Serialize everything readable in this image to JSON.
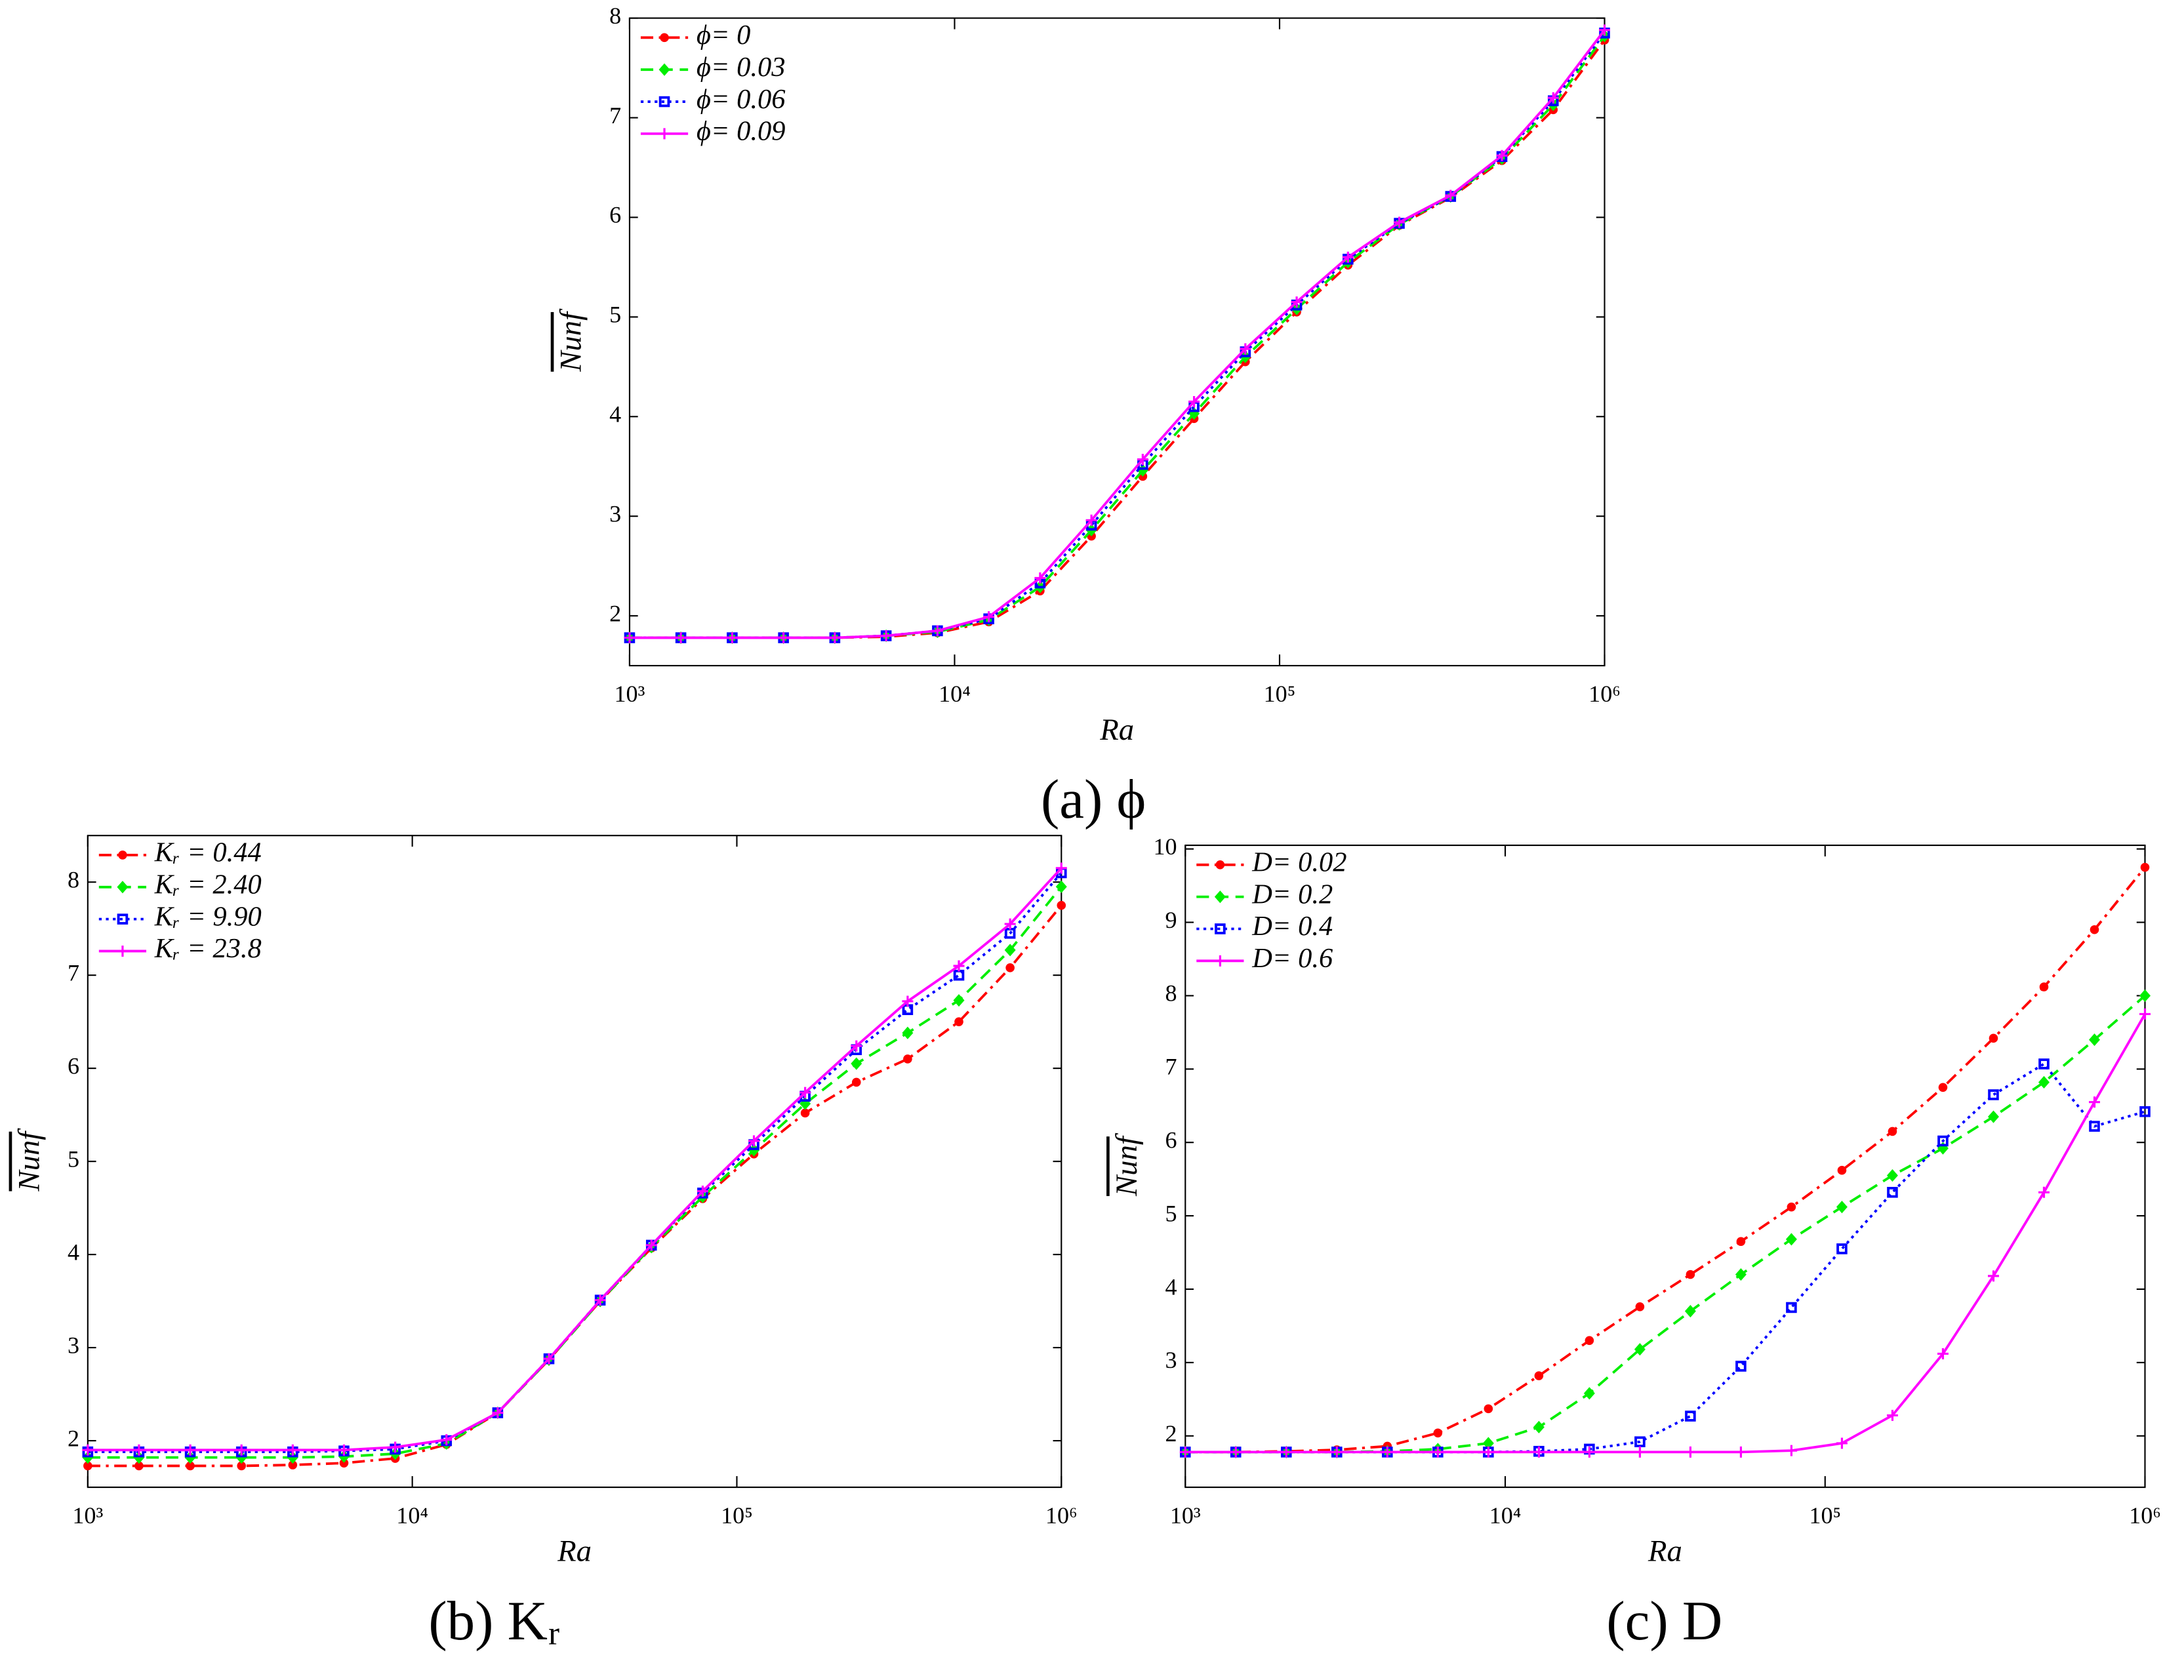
{
  "chart_data": [
    {
      "type": "line",
      "caption": "(a) ϕ",
      "xlabel": "Ra",
      "ylabel": "Nunf",
      "xscale": "log",
      "x": [
        1000,
        1438,
        2069,
        2976,
        4281,
        6158,
        8859,
        12743,
        18330,
        26367,
        37927,
        54556,
        78476,
        112884,
        162378,
        233572,
        335982,
        483293,
        695193,
        1000000
      ],
      "xlim": [
        1000,
        1000000
      ],
      "xticks": [
        {
          "value": 1000,
          "label": "10³"
        },
        {
          "value": 10000,
          "label": "10⁴"
        },
        {
          "value": 100000,
          "label": "10⁵"
        },
        {
          "value": 1000000,
          "label": "10⁶"
        }
      ],
      "ylim": [
        1.5,
        8
      ],
      "yticks": [
        2,
        3,
        4,
        5,
        6,
        7,
        8
      ],
      "legend": "upper left",
      "series": [
        {
          "name": "ϕ= 0",
          "color": "#ff0000",
          "marker": "circle",
          "linestyle": "dashdot",
          "values": [
            1.78,
            1.78,
            1.78,
            1.78,
            1.78,
            1.79,
            1.83,
            1.94,
            2.25,
            2.8,
            3.4,
            3.98,
            4.55,
            5.05,
            5.52,
            5.92,
            6.2,
            6.57,
            7.08,
            7.78
          ]
        },
        {
          "name": "ϕ= 0.03",
          "color": "#00ee00",
          "marker": "diamond",
          "linestyle": "dashed",
          "values": [
            1.78,
            1.78,
            1.78,
            1.78,
            1.78,
            1.8,
            1.84,
            1.96,
            2.29,
            2.86,
            3.46,
            4.03,
            4.6,
            5.08,
            5.55,
            5.93,
            6.21,
            6.59,
            7.13,
            7.82
          ]
        },
        {
          "name": "ϕ= 0.06",
          "color": "#0000ff",
          "marker": "square",
          "linestyle": "dotted",
          "values": [
            1.78,
            1.78,
            1.78,
            1.78,
            1.78,
            1.8,
            1.85,
            1.97,
            2.33,
            2.91,
            3.52,
            4.1,
            4.65,
            5.12,
            5.58,
            5.94,
            6.21,
            6.61,
            7.17,
            7.85
          ]
        },
        {
          "name": "ϕ= 0.09",
          "color": "#ff00ff",
          "marker": "plus",
          "linestyle": "solid",
          "values": [
            1.78,
            1.78,
            1.78,
            1.78,
            1.78,
            1.8,
            1.85,
            1.99,
            2.38,
            2.96,
            3.57,
            4.15,
            4.68,
            5.15,
            5.6,
            5.95,
            6.22,
            6.62,
            7.2,
            7.88
          ]
        }
      ]
    },
    {
      "type": "line",
      "caption": "(b) Kᵣ",
      "xlabel": "Ra",
      "ylabel": "Nunf",
      "xscale": "log",
      "x": [
        1000,
        1438,
        2069,
        2976,
        4281,
        6158,
        8859,
        12743,
        18330,
        26367,
        37927,
        54556,
        78476,
        112884,
        162378,
        233572,
        335982,
        483293,
        695193,
        1000000
      ],
      "xlim": [
        1000,
        1000000
      ],
      "xticks": [
        {
          "value": 1000,
          "label": "10³"
        },
        {
          "value": 10000,
          "label": "10⁴"
        },
        {
          "value": 100000,
          "label": "10⁵"
        },
        {
          "value": 1000000,
          "label": "10⁶"
        }
      ],
      "ylim": [
        1.5,
        8.5
      ],
      "yticks": [
        2,
        3,
        4,
        5,
        6,
        7,
        8
      ],
      "legend": "upper left",
      "series": [
        {
          "name": "Kᵣ = 0.44",
          "color": "#ff0000",
          "marker": "circle",
          "linestyle": "dashdot",
          "values": [
            1.73,
            1.73,
            1.73,
            1.73,
            1.74,
            1.76,
            1.81,
            1.96,
            2.3,
            2.87,
            3.5,
            4.07,
            4.6,
            5.08,
            5.52,
            5.85,
            6.1,
            6.5,
            7.08,
            7.75
          ]
        },
        {
          "name": "Kᵣ = 2.40",
          "color": "#00ee00",
          "marker": "diamond",
          "linestyle": "dashed",
          "values": [
            1.82,
            1.82,
            1.82,
            1.82,
            1.82,
            1.83,
            1.86,
            1.97,
            2.3,
            2.87,
            3.5,
            4.08,
            4.62,
            5.12,
            5.62,
            6.05,
            6.38,
            6.73,
            7.27,
            7.95
          ]
        },
        {
          "name": "Kᵣ = 9.90",
          "color": "#0000ff",
          "marker": "square",
          "linestyle": "dotted",
          "values": [
            1.88,
            1.88,
            1.88,
            1.88,
            1.88,
            1.89,
            1.91,
            2.0,
            2.3,
            2.88,
            3.51,
            4.1,
            4.66,
            5.18,
            5.7,
            6.2,
            6.63,
            7.0,
            7.45,
            8.1
          ]
        },
        {
          "name": "Kᵣ = 23.8",
          "color": "#ff00ff",
          "marker": "plus",
          "linestyle": "solid",
          "values": [
            1.9,
            1.9,
            1.9,
            1.9,
            1.9,
            1.9,
            1.93,
            2.01,
            2.3,
            2.88,
            3.51,
            4.1,
            4.68,
            5.22,
            5.74,
            6.24,
            6.72,
            7.1,
            7.55,
            8.15
          ]
        }
      ]
    },
    {
      "type": "line",
      "caption": "(c) D",
      "xlabel": "Ra",
      "ylabel": "Nunf",
      "xscale": "log",
      "x": [
        1000,
        1438,
        2069,
        2976,
        4281,
        6158,
        8859,
        12743,
        18330,
        26367,
        37927,
        54556,
        78476,
        112884,
        162378,
        233572,
        335982,
        483293,
        695193,
        1000000
      ],
      "xlim": [
        1000,
        1000000
      ],
      "xticks": [
        {
          "value": 1000,
          "label": "10³"
        },
        {
          "value": 10000,
          "label": "10⁴"
        },
        {
          "value": 100000,
          "label": "10⁵"
        },
        {
          "value": 1000000,
          "label": "10⁶"
        }
      ],
      "ylim": [
        1.3,
        10.05
      ],
      "yticks": [
        2,
        3,
        4,
        5,
        6,
        7,
        8,
        9,
        10
      ],
      "legend": "upper left",
      "series": [
        {
          "name": "D= 0.02",
          "color": "#ff0000",
          "marker": "circle",
          "linestyle": "dashdot",
          "values": [
            1.78,
            1.78,
            1.79,
            1.81,
            1.86,
            2.04,
            2.37,
            2.82,
            3.3,
            3.76,
            4.2,
            4.65,
            5.12,
            5.62,
            6.15,
            6.75,
            7.42,
            8.12,
            8.9,
            9.75
          ]
        },
        {
          "name": "D= 0.2",
          "color": "#00ee00",
          "marker": "diamond",
          "linestyle": "dashed",
          "values": [
            1.78,
            1.78,
            1.78,
            1.78,
            1.79,
            1.82,
            1.9,
            2.12,
            2.58,
            3.18,
            3.7,
            4.2,
            4.68,
            5.12,
            5.55,
            5.92,
            6.35,
            6.82,
            7.4,
            8.0
          ]
        },
        {
          "name": "D= 0.4",
          "color": "#0000ff",
          "marker": "square",
          "linestyle": "dotted",
          "values": [
            1.78,
            1.78,
            1.78,
            1.78,
            1.78,
            1.78,
            1.78,
            1.79,
            1.82,
            1.92,
            2.27,
            2.95,
            3.75,
            4.55,
            5.32,
            6.02,
            6.65,
            7.07,
            6.22,
            6.42
          ]
        },
        {
          "name": "D= 0.6",
          "color": "#ff00ff",
          "marker": "plus",
          "linestyle": "solid",
          "values": [
            1.78,
            1.78,
            1.78,
            1.78,
            1.78,
            1.78,
            1.78,
            1.78,
            1.78,
            1.78,
            1.78,
            1.78,
            1.8,
            1.9,
            2.28,
            3.12,
            4.18,
            5.32,
            6.55,
            7.75
          ]
        }
      ]
    }
  ]
}
